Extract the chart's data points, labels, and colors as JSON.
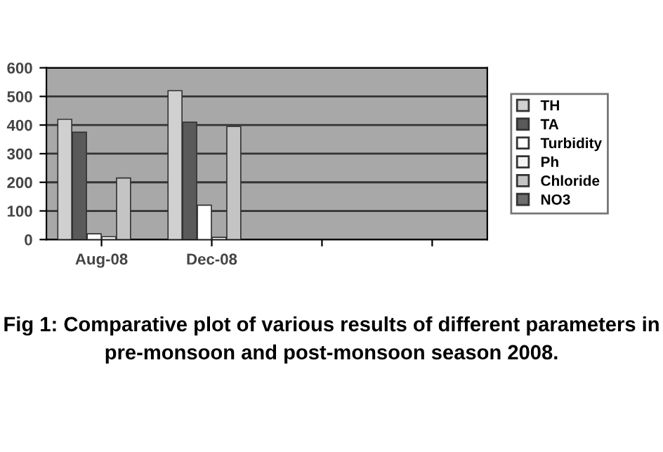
{
  "chart_data": {
    "type": "bar",
    "categories": [
      "Aug-08",
      "Dec-08",
      null,
      null
    ],
    "series": [
      {
        "name": "TH",
        "color": "#d0d0d0",
        "values": [
          420,
          520,
          null,
          null
        ]
      },
      {
        "name": "TA",
        "color": "#5a5a5a",
        "values": [
          375,
          410,
          null,
          null
        ]
      },
      {
        "name": "Turbidity",
        "color": "#ffffff",
        "values": [
          20,
          120,
          null,
          null
        ]
      },
      {
        "name": "Ph",
        "color": "#f4f4f4",
        "values": [
          10,
          8,
          null,
          null
        ]
      },
      {
        "name": "Chloride",
        "color": "#c4c4c4",
        "values": [
          215,
          395,
          null,
          null
        ]
      },
      {
        "name": "NO3",
        "color": "#6e6e6e",
        "values": [
          null,
          null,
          null,
          null
        ]
      }
    ],
    "ylim": [
      0,
      600
    ],
    "yticks": [
      0,
      100,
      200,
      300,
      400,
      500,
      600
    ],
    "grid": "y",
    "legend": "right",
    "annotations": [
      "Fig 1: Comparative plot of various results of different parameters in pre-monsoon and post-monsoon season 2008."
    ]
  }
}
